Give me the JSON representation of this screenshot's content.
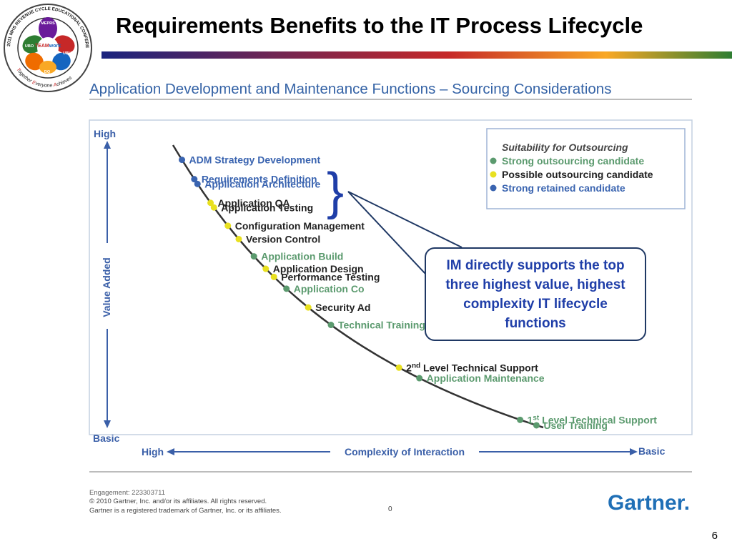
{
  "slide": {
    "title": "Requirements Benefits to the IT Process Lifecycle",
    "page_number": "6",
    "accent_color": "#1f3ea8",
    "title_bar_colors": [
      "#1a237e",
      "#c62828",
      "#f9a825",
      "#2e7d32"
    ]
  },
  "logo": {
    "outer_text": "2011 MHS REVENUE CYCLE EDUCATIONAL CONFERENCE",
    "motto_parts": [
      "T",
      "ogether ",
      "E",
      "veryone ",
      "A",
      "chieves"
    ],
    "center_text_a": "TEAM",
    "center_text_b": "work",
    "hand_labels": [
      "MEPRS",
      "UBO",
      "UBU",
      "DQ"
    ],
    "hand_colors": [
      "#6a1b9a",
      "#2e7d32",
      "#c62828",
      "#ef6c00",
      "#1565c0",
      "#f9a825"
    ]
  },
  "callout": {
    "text": "IM directly supports the top three highest value, highest complexity IT lifecycle functions",
    "border_color": "#1f3864",
    "text_color": "#1f3ea8"
  },
  "chart_data": {
    "type": "scatter",
    "title": "Application Development and Maintenance Functions – Sourcing Considerations",
    "y_axis": {
      "label": "Value Added",
      "top_label": "High",
      "bottom_label": "Basic"
    },
    "x_axis": {
      "label": "Complexity of Interaction",
      "left_label": "High",
      "right_label": "Basic"
    },
    "legend": {
      "title": "Suitability for Outsourcing",
      "placement": "top-right",
      "entries": [
        {
          "label": "Strong outsourcing candidate",
          "color": "#5b9a6e",
          "category": "strong_outsourcing"
        },
        {
          "label": "Possible outsourcing candidate",
          "color": "#e8e020",
          "category": "possible_outsourcing"
        },
        {
          "label": "Strong retained candidate",
          "color": "#3a64b0",
          "category": "strong_retained"
        }
      ]
    },
    "colors": {
      "strong_outsourcing": "#5b9a6e",
      "possible_outsourcing": "#e8e020",
      "strong_retained": "#3a64b0"
    },
    "points": [
      {
        "label": "ADM Strategy Development",
        "category": "strong_retained",
        "complexity": 0.97,
        "value": 0.98
      },
      {
        "label": "Requirements Definition",
        "category": "strong_retained",
        "complexity": 0.93,
        "value": 0.85
      },
      {
        "label": "Application Architecture",
        "category": "strong_retained",
        "complexity": 0.92,
        "value": 0.81
      },
      {
        "label": "Application QA",
        "category": "possible_outsourcing",
        "complexity": 0.88,
        "value": 0.73
      },
      {
        "label": "Application Testing",
        "category": "possible_outsourcing",
        "complexity": 0.87,
        "value": 0.69
      },
      {
        "label": "Configuration Management",
        "category": "possible_outsourcing",
        "complexity": 0.83,
        "value": 0.62
      },
      {
        "label": "Version Control",
        "category": "possible_outsourcing",
        "complexity": 0.8,
        "value": 0.55
      },
      {
        "label": "Application Build",
        "category": "strong_outsourcing",
        "complexity": 0.76,
        "value": 0.49
      },
      {
        "label": "Application Design",
        "category": "possible_outsourcing",
        "complexity": 0.73,
        "value": 0.45
      },
      {
        "label": "Performance Testing",
        "category": "possible_outsourcing",
        "complexity": 0.71,
        "value": 0.41
      },
      {
        "label": "Application Co",
        "category": "strong_outsourcing",
        "complexity": 0.68,
        "value": 0.37
      },
      {
        "label": "Security Ad",
        "category": "possible_outsourcing",
        "complexity": 0.63,
        "value": 0.3
      },
      {
        "label": "Technical Training",
        "category": "strong_outsourcing",
        "complexity": 0.58,
        "value": 0.24
      },
      {
        "label": "2nd Level Technical Support",
        "category": "possible_outsourcing",
        "complexity": 0.44,
        "value": 0.17,
        "sup": "nd"
      },
      {
        "label": "Application Maintenance",
        "category": "strong_outsourcing",
        "complexity": 0.4,
        "value": 0.13
      },
      {
        "label": "1st Level Technical Support",
        "category": "strong_outsourcing",
        "complexity": 0.21,
        "value": 0.05,
        "sup": "st"
      },
      {
        "label": "User Training",
        "category": "strong_outsourcing",
        "complexity": 0.18,
        "value": 0.02
      }
    ],
    "footer": {
      "engagement": "Engagement: 223303711",
      "copyright": "© 2010 Gartner, Inc. and/or its affiliates. All rights reserved.",
      "trademark": "Gartner is a registered trademark of Gartner, Inc. or its affiliates.",
      "page": "0",
      "brand": "Gartner."
    }
  }
}
